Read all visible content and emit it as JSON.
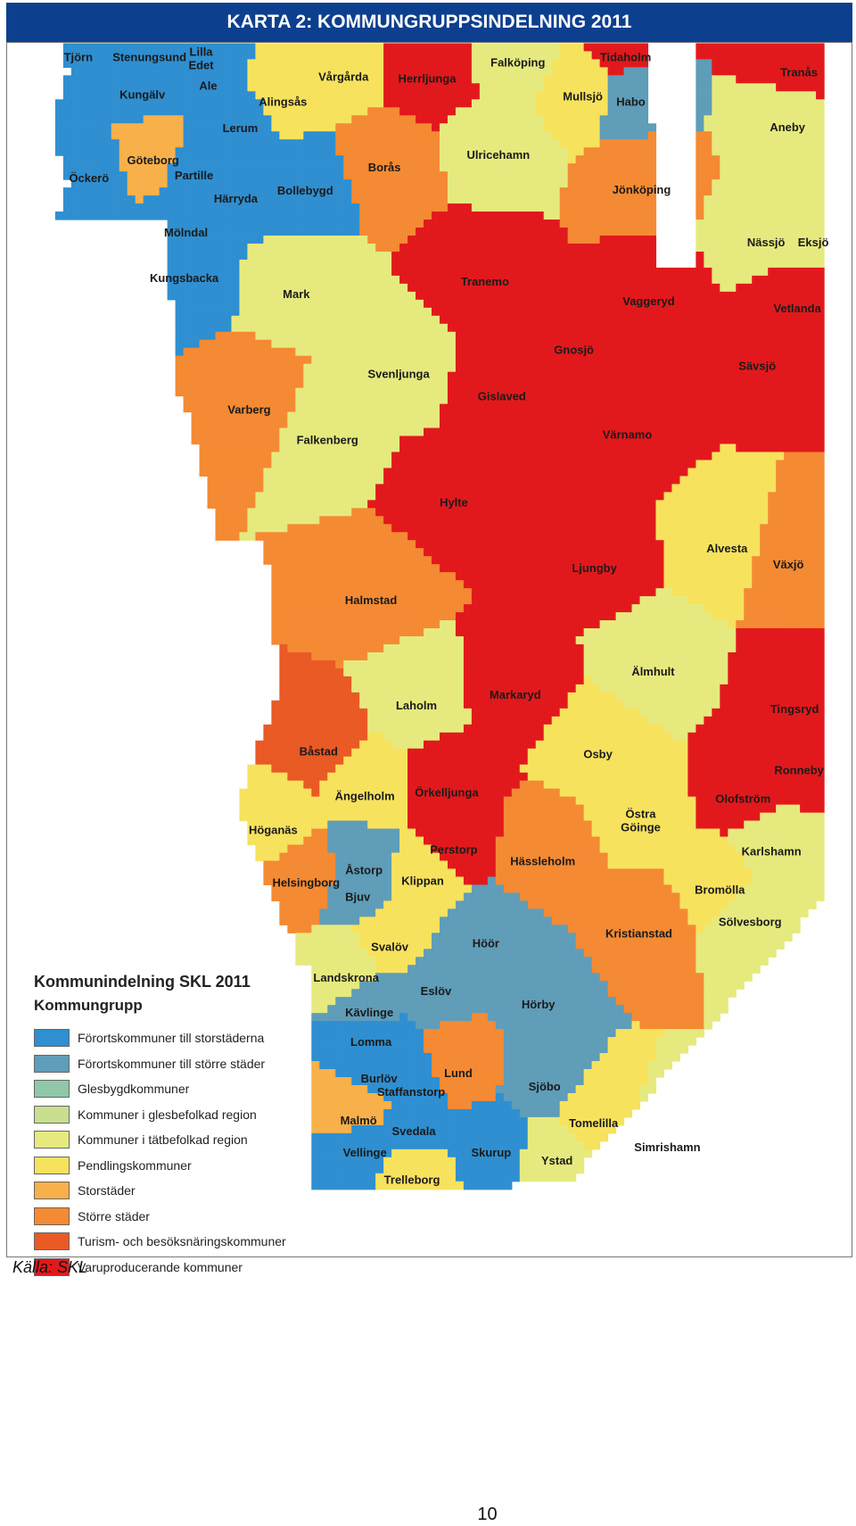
{
  "header": {
    "title": "KARTA 2: KOMMUNGRUPPSINDELNING 2011"
  },
  "colors": {
    "Förortskommuner till storstäderna": "#2f8fd0",
    "Förortskommuner till större städer": "#5f9db8",
    "Glesbygdkommuner": "#8fc7a8",
    "Kommuner i glesbefolkad region": "#c9de8e",
    "Kommuner i tätbefolkad region": "#e6ea7e",
    "Pendlingskommuner": "#f7e25e",
    "Storstäder": "#f8b04a",
    "Större städer": "#f48a33",
    "Turism- och besöksnäringskommuner": "#e95a24",
    "Varuproducerande kommuner": "#e2191c"
  },
  "legend": {
    "title": "Kommunindelning SKL 2011",
    "subtitle": "Kommungrupp",
    "items": [
      {
        "label": "Förortskommuner till storstäderna",
        "color": "#2f8fd0"
      },
      {
        "label": "Förortskommuner till större städer",
        "color": "#5f9db8"
      },
      {
        "label": "Glesbygdkommuner",
        "color": "#8fc7a8"
      },
      {
        "label": "Kommuner i glesbefolkad region",
        "color": "#c9de8e"
      },
      {
        "label": "Kommuner i tätbefolkad region",
        "color": "#e6ea7e"
      },
      {
        "label": "Pendlingskommuner",
        "color": "#f7e25e"
      },
      {
        "label": "Storstäder",
        "color": "#f8b04a"
      },
      {
        "label": "Större städer",
        "color": "#f48a33"
      },
      {
        "label": "Turism- och besöksnäringskommuner",
        "color": "#e95a24"
      },
      {
        "label": "Varuproducerande kommuner",
        "color": "#e2191c"
      }
    ]
  },
  "municipalities": [
    {
      "name": "Tjörn",
      "group": "Förortskommuner till storstäderna"
    },
    {
      "name": "Stenungsund",
      "group": "Förortskommuner till storstäderna"
    },
    {
      "name": "Lilla Edet",
      "group": "Förortskommuner till storstäderna"
    },
    {
      "name": "Kungälv",
      "group": "Förortskommuner till storstäderna"
    },
    {
      "name": "Ale",
      "group": "Förortskommuner till storstäderna"
    },
    {
      "name": "Alingsås",
      "group": "Pendlingskommuner"
    },
    {
      "name": "Vårgårda",
      "group": "Pendlingskommuner"
    },
    {
      "name": "Herrljunga",
      "group": "Varuproducerande kommuner"
    },
    {
      "name": "Falköping",
      "group": "Kommuner i tätbefolkad region"
    },
    {
      "name": "Tidaholm",
      "group": "Varuproducerande kommuner"
    },
    {
      "name": "Tranås",
      "group": "Varuproducerande kommuner"
    },
    {
      "name": "Mullsjö",
      "group": "Pendlingskommuner"
    },
    {
      "name": "Habo",
      "group": "Förortskommuner till större städer"
    },
    {
      "name": "Aneby",
      "group": "Kommuner i tätbefolkad region"
    },
    {
      "name": "Lerum",
      "group": "Förortskommuner till storstäderna"
    },
    {
      "name": "Göteborg",
      "group": "Storstäder"
    },
    {
      "name": "Partille",
      "group": "Förortskommuner till storstäderna"
    },
    {
      "name": "Öckerö",
      "group": "Förortskommuner till storstäderna"
    },
    {
      "name": "Borås",
      "group": "Större städer"
    },
    {
      "name": "Ulricehamn",
      "group": "Kommuner i tätbefolkad region"
    },
    {
      "name": "Jönköping",
      "group": "Större städer"
    },
    {
      "name": "Härryda",
      "group": "Förortskommuner till storstäderna"
    },
    {
      "name": "Bollebygd",
      "group": "Förortskommuner till storstäderna"
    },
    {
      "name": "Mölndal",
      "group": "Förortskommuner till storstäderna"
    },
    {
      "name": "Nässjö",
      "group": "Kommuner i tätbefolkad region"
    },
    {
      "name": "Eksjö",
      "group": "Kommuner i tätbefolkad region"
    },
    {
      "name": "Kungsbacka",
      "group": "Förortskommuner till storstäderna"
    },
    {
      "name": "Mark",
      "group": "Kommuner i tätbefolkad region"
    },
    {
      "name": "Tranemo",
      "group": "Varuproducerande kommuner"
    },
    {
      "name": "Vaggeryd",
      "group": "Varuproducerande kommuner"
    },
    {
      "name": "Vetlanda",
      "group": "Varuproducerande kommuner"
    },
    {
      "name": "Gnosjö",
      "group": "Varuproducerande kommuner"
    },
    {
      "name": "Sävsjö",
      "group": "Varuproducerande kommuner"
    },
    {
      "name": "Svenljunga",
      "group": "Kommuner i tätbefolkad region"
    },
    {
      "name": "Varberg",
      "group": "Större städer"
    },
    {
      "name": "Gislaved",
      "group": "Varuproducerande kommuner"
    },
    {
      "name": "Falkenberg",
      "group": "Kommuner i tätbefolkad region"
    },
    {
      "name": "Värnamo",
      "group": "Varuproducerande kommuner"
    },
    {
      "name": "Hylte",
      "group": "Varuproducerande kommuner"
    },
    {
      "name": "Alvesta",
      "group": "Pendlingskommuner"
    },
    {
      "name": "Växjö",
      "group": "Större städer"
    },
    {
      "name": "Ljungby",
      "group": "Varuproducerande kommuner"
    },
    {
      "name": "Halmstad",
      "group": "Större städer"
    },
    {
      "name": "Älmhult",
      "group": "Kommuner i tätbefolkad region"
    },
    {
      "name": "Laholm",
      "group": "Kommuner i tätbefolkad region"
    },
    {
      "name": "Markaryd",
      "group": "Varuproducerande kommuner"
    },
    {
      "name": "Tingsryd",
      "group": "Varuproducerande kommuner"
    },
    {
      "name": "Båstad",
      "group": "Turism- och besöksnäringskommuner"
    },
    {
      "name": "Osby",
      "group": "Pendlingskommuner"
    },
    {
      "name": "Ronneby",
      "group": "Varuproducerande kommuner"
    },
    {
      "name": "Ängelholm",
      "group": "Pendlingskommuner"
    },
    {
      "name": "Örkelljunga",
      "group": "Varuproducerande kommuner"
    },
    {
      "name": "Olofström",
      "group": "Varuproducerande kommuner"
    },
    {
      "name": "Östra Göinge",
      "group": "Pendlingskommuner"
    },
    {
      "name": "Höganäs",
      "group": "Pendlingskommuner"
    },
    {
      "name": "Perstorp",
      "group": "Varuproducerande kommuner"
    },
    {
      "name": "Hässleholm",
      "group": "Större städer"
    },
    {
      "name": "Karlshamn",
      "group": "Kommuner i tätbefolkad region"
    },
    {
      "name": "Åstorp",
      "group": "Förortskommuner till större städer"
    },
    {
      "name": "Helsingborg",
      "group": "Större städer"
    },
    {
      "name": "Bjuv",
      "group": "Förortskommuner till större städer"
    },
    {
      "name": "Klippan",
      "group": "Pendlingskommuner"
    },
    {
      "name": "Bromölla",
      "group": "Pendlingskommuner"
    },
    {
      "name": "Sölvesborg",
      "group": "Kommuner i tätbefolkad region"
    },
    {
      "name": "Kristianstad",
      "group": "Större städer"
    },
    {
      "name": "Svalöv",
      "group": "Pendlingskommuner"
    },
    {
      "name": "Höör",
      "group": "Förortskommuner till större städer"
    },
    {
      "name": "Landskrona",
      "group": "Kommuner i tätbefolkad region"
    },
    {
      "name": "Eslöv",
      "group": "Förortskommuner till större städer"
    },
    {
      "name": "Kävlinge",
      "group": "Förortskommuner till större städer"
    },
    {
      "name": "Hörby",
      "group": "Förortskommuner till större städer"
    },
    {
      "name": "Lomma",
      "group": "Förortskommuner till storstäderna"
    },
    {
      "name": "Lund",
      "group": "Större städer"
    },
    {
      "name": "Burlöv",
      "group": "Förortskommuner till storstäderna"
    },
    {
      "name": "Staffanstorp",
      "group": "Förortskommuner till storstäderna"
    },
    {
      "name": "Sjöbo",
      "group": "Förortskommuner till större städer"
    },
    {
      "name": "Malmö",
      "group": "Storstäder"
    },
    {
      "name": "Tomelilla",
      "group": "Pendlingskommuner"
    },
    {
      "name": "Svedala",
      "group": "Förortskommuner till storstäderna"
    },
    {
      "name": "Simrishamn",
      "group": "Kommuner i tätbefolkad region"
    },
    {
      "name": "Vellinge",
      "group": "Förortskommuner till storstäderna"
    },
    {
      "name": "Skurup",
      "group": "Förortskommuner till storstäderna"
    },
    {
      "name": "Ystad",
      "group": "Kommuner i tätbefolkad region"
    },
    {
      "name": "Trelleborg",
      "group": "Pendlingskommuner"
    }
  ],
  "footer": {
    "source": "Källa: SKL",
    "page_number": "10"
  }
}
